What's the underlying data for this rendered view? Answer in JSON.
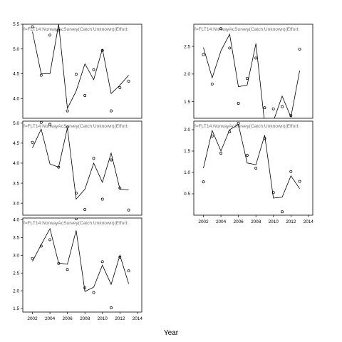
{
  "chart_data": {
    "type": "line",
    "xlabel": "Year",
    "x_ticks": [
      2002,
      2004,
      2006,
      2008,
      2010,
      2012,
      2014
    ],
    "panels": [
      {
        "title": "f=FLT14:NorwayAcSurvey(Catch:Unknown)(Effort:",
        "ylim": [
          3.6,
          5.5
        ],
        "y_ticks": [
          4.0,
          4.5,
          5.0,
          5.5
        ],
        "y_tick_labels": [
          "4.0",
          "4.5",
          "5.0",
          "5.5"
        ],
        "fitted": {
          "x": [
            2002,
            2003,
            2004,
            2005,
            2006,
            2007,
            2008,
            2009,
            2010,
            2011,
            2012,
            2013
          ],
          "y": [
            5.35,
            4.5,
            4.5,
            5.5,
            3.8,
            4.15,
            4.7,
            4.38,
            5.0,
            4.1,
            4.27,
            4.47
          ]
        },
        "observed": {
          "x": [
            2002,
            2003,
            2004,
            2005,
            2006,
            2007,
            2008,
            2009,
            2010,
            2011,
            2012,
            2013
          ],
          "y": [
            5.45,
            4.47,
            5.28,
            5.38,
            3.75,
            4.49,
            4.06,
            4.58,
            4.97,
            3.75,
            4.22,
            4.35
          ]
        }
      },
      {
        "title": "f=FLT14:NorwayAcSurvey(Catch:Unknown)(Effort:",
        "ylim": [
          1.2,
          2.9
        ],
        "y_ticks": [
          1.5,
          2.0,
          2.5
        ],
        "y_tick_labels": [
          "1.5",
          "2.0",
          "2.5"
        ],
        "fitted": {
          "x": [
            2002,
            2003,
            2004,
            2005,
            2006,
            2007,
            2008,
            2009,
            2010,
            2011,
            2012,
            2013
          ],
          "y": [
            2.48,
            1.93,
            2.42,
            2.72,
            1.77,
            1.8,
            2.55,
            1.1,
            1.15,
            1.6,
            1.22,
            2.06
          ]
        },
        "observed": {
          "x": [
            2002,
            2003,
            2004,
            2005,
            2006,
            2007,
            2008,
            2009,
            2010,
            2011,
            2012,
            2013
          ],
          "y": [
            2.35,
            1.82,
            2.82,
            2.47,
            1.47,
            1.92,
            2.29,
            1.39,
            1.37,
            1.41,
            1.25,
            2.45
          ]
        }
      },
      {
        "title": "f=FLT14:NorwayAcSurvey(Catch:Unknown)(Effort:",
        "ylim": [
          2.7,
          5.05
        ],
        "y_ticks": [
          3.0,
          3.5,
          4.0,
          4.5,
          5.0
        ],
        "y_tick_labels": [
          "3.0",
          "3.5",
          "4.0",
          "4.5",
          "5.0"
        ],
        "fitted": {
          "x": [
            2002,
            2003,
            2004,
            2005,
            2006,
            2007,
            2008,
            2009,
            2010,
            2011,
            2012,
            2013
          ],
          "y": [
            4.38,
            4.85,
            3.98,
            3.9,
            4.88,
            3.1,
            3.35,
            4.0,
            3.52,
            4.25,
            3.35,
            3.33
          ]
        },
        "observed": {
          "x": [
            2002,
            2003,
            2004,
            2005,
            2006,
            2007,
            2008,
            2009,
            2010,
            2011,
            2012,
            2013
          ],
          "y": [
            4.52,
            5.02,
            4.97,
            3.9,
            4.9,
            3.25,
            2.84,
            4.12,
            3.1,
            4.08,
            3.38,
            2.83
          ]
        }
      },
      {
        "title": "f=FLT14:NorwayAcSurvey(Catch:Unknown)(Effort:",
        "ylim": [
          0.0,
          2.2
        ],
        "y_ticks": [
          0.5,
          1.0,
          1.5,
          2.0
        ],
        "y_tick_labels": [
          "0.5",
          "1.0",
          "1.5",
          "2.0"
        ],
        "fitted": {
          "x": [
            2002,
            2003,
            2004,
            2005,
            2006,
            2007,
            2008,
            2009,
            2010,
            2011,
            2012,
            2013
          ],
          "y": [
            1.1,
            1.98,
            1.5,
            2.0,
            2.12,
            1.22,
            1.18,
            1.87,
            0.4,
            0.42,
            0.92,
            0.62
          ]
        },
        "observed": {
          "x": [
            2002,
            2003,
            2004,
            2005,
            2006,
            2007,
            2008,
            2009,
            2010,
            2011,
            2012,
            2013
          ],
          "y": [
            0.78,
            1.85,
            1.45,
            1.95,
            2.15,
            1.4,
            1.1,
            1.8,
            0.53,
            0.08,
            1.02,
            0.79
          ]
        }
      },
      {
        "title": "f=FLT14:NorwayAcSurvey(Catch:Unknown)(Effort:",
        "ylim": [
          1.4,
          4.05
        ],
        "y_ticks": [
          1.5,
          2.0,
          2.5,
          3.0,
          3.5,
          4.0
        ],
        "y_tick_labels": [
          "1.5",
          "2.0",
          "2.5",
          "3.0",
          "3.5",
          "4.0"
        ],
        "fitted": {
          "x": [
            2002,
            2003,
            2004,
            2005,
            2006,
            2007,
            2008,
            2009,
            2010,
            2011,
            2012,
            2013
          ],
          "y": [
            2.83,
            3.3,
            3.75,
            2.78,
            2.75,
            3.7,
            1.98,
            2.1,
            2.72,
            2.18,
            3.0,
            2.2
          ]
        },
        "observed": {
          "x": [
            2002,
            2003,
            2004,
            2005,
            2006,
            2007,
            2008,
            2009,
            2010,
            2011,
            2012,
            2013
          ],
          "y": [
            2.91,
            3.26,
            3.44,
            2.77,
            2.6,
            4.03,
            2.08,
            1.95,
            2.82,
            1.52,
            2.95,
            2.56
          ]
        }
      }
    ]
  }
}
